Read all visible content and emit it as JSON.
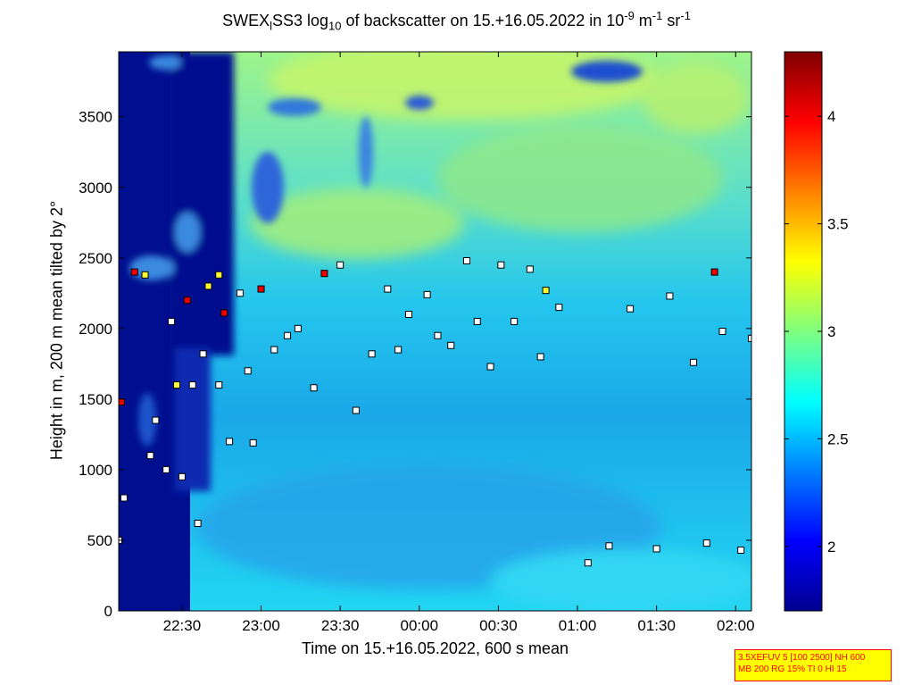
{
  "title": {
    "part1": "SWEX",
    "part1_sub": "l",
    "part2": "SS3 log",
    "part2_sub": "10",
    "part3": " of backscatter on 15.+16.05.2022 in 10",
    "part3_sup": "-9",
    "part4": " m",
    "part4_sup": "-1",
    "part5": " sr",
    "part5_sup": "-1"
  },
  "xlabel": "Time on 15.+16.05.2022, 600 s mean",
  "ylabel": "Height in m, 200 m mean tilted by 2°",
  "info": {
    "line1": "3.5XEFUV 5 [100 2500] NH 600",
    "line2": "MB 200 RG 15% TI 0 HI 15"
  },
  "chart_data": {
    "type": "heatmap",
    "x_axis": {
      "label": "Time on 15.+16.05.2022, 600 s mean",
      "range": [
        "22:06",
        "02:06"
      ],
      "ticks": [
        "22:30",
        "23:00",
        "23:30",
        "00:00",
        "00:30",
        "01:00",
        "01:30",
        "02:00"
      ]
    },
    "y_axis": {
      "label": "Height in m, 200 m mean tilted by 2°",
      "range": [
        0,
        3960
      ],
      "ticks": [
        0,
        500,
        1000,
        1500,
        2000,
        2500,
        3000,
        3500
      ]
    },
    "colorbar": {
      "colormap": "jet",
      "range": [
        1.7,
        4.3
      ],
      "ticks": [
        2,
        2.5,
        3,
        3.5,
        4
      ]
    },
    "layer_markers": [
      {
        "time": "22:06",
        "height": 500,
        "level": "low"
      },
      {
        "time": "22:08",
        "height": 800,
        "level": "low"
      },
      {
        "time": "22:07",
        "height": 1480,
        "level": "high"
      },
      {
        "time": "22:12",
        "height": 2400,
        "level": "high"
      },
      {
        "time": "22:16",
        "height": 2380,
        "level": "mid"
      },
      {
        "time": "22:18",
        "height": 1100,
        "level": "low"
      },
      {
        "time": "22:20",
        "height": 1350,
        "level": "low"
      },
      {
        "time": "22:24",
        "height": 1000,
        "level": "low"
      },
      {
        "time": "22:26",
        "height": 2050,
        "level": "low"
      },
      {
        "time": "22:28",
        "height": 1600,
        "level": "mid"
      },
      {
        "time": "22:30",
        "height": 950,
        "level": "low"
      },
      {
        "time": "22:32",
        "height": 2200,
        "level": "high"
      },
      {
        "time": "22:34",
        "height": 1600,
        "level": "low"
      },
      {
        "time": "22:36",
        "height": 620,
        "level": "low"
      },
      {
        "time": "22:38",
        "height": 1820,
        "level": "low"
      },
      {
        "time": "22:40",
        "height": 2300,
        "level": "mid"
      },
      {
        "time": "22:44",
        "height": 2380,
        "level": "mid"
      },
      {
        "time": "22:44",
        "height": 1600,
        "level": "low"
      },
      {
        "time": "22:46",
        "height": 2110,
        "level": "high"
      },
      {
        "time": "22:48",
        "height": 1200,
        "level": "low"
      },
      {
        "time": "22:52",
        "height": 2250,
        "level": "low"
      },
      {
        "time": "22:55",
        "height": 1700,
        "level": "low"
      },
      {
        "time": "22:57",
        "height": 1190,
        "level": "low"
      },
      {
        "time": "23:00",
        "height": 2280,
        "level": "high"
      },
      {
        "time": "23:05",
        "height": 1850,
        "level": "low"
      },
      {
        "time": "23:10",
        "height": 1950,
        "level": "low"
      },
      {
        "time": "23:14",
        "height": 2000,
        "level": "low"
      },
      {
        "time": "23:20",
        "height": 1580,
        "level": "low"
      },
      {
        "time": "23:24",
        "height": 2390,
        "level": "high"
      },
      {
        "time": "23:30",
        "height": 2450,
        "level": "low"
      },
      {
        "time": "23:36",
        "height": 1420,
        "level": "low"
      },
      {
        "time": "23:42",
        "height": 1820,
        "level": "low"
      },
      {
        "time": "23:48",
        "height": 2280,
        "level": "low"
      },
      {
        "time": "23:52",
        "height": 1850,
        "level": "low"
      },
      {
        "time": "23:56",
        "height": 2100,
        "level": "low"
      },
      {
        "time": "00:03",
        "height": 2240,
        "level": "low"
      },
      {
        "time": "00:07",
        "height": 1950,
        "level": "low"
      },
      {
        "time": "00:12",
        "height": 1880,
        "level": "low"
      },
      {
        "time": "00:18",
        "height": 2480,
        "level": "low"
      },
      {
        "time": "00:22",
        "height": 2050,
        "level": "low"
      },
      {
        "time": "00:27",
        "height": 1730,
        "level": "low"
      },
      {
        "time": "00:31",
        "height": 2450,
        "level": "low"
      },
      {
        "time": "00:36",
        "height": 2050,
        "level": "low"
      },
      {
        "time": "00:42",
        "height": 2420,
        "level": "low"
      },
      {
        "time": "00:46",
        "height": 1800,
        "level": "low"
      },
      {
        "time": "00:48",
        "height": 2270,
        "level": "mid"
      },
      {
        "time": "00:53",
        "height": 2150,
        "level": "low"
      },
      {
        "time": "01:04",
        "height": 340,
        "level": "low"
      },
      {
        "time": "01:12",
        "height": 460,
        "level": "low"
      },
      {
        "time": "01:20",
        "height": 2140,
        "level": "low"
      },
      {
        "time": "01:30",
        "height": 440,
        "level": "low"
      },
      {
        "time": "01:35",
        "height": 2230,
        "level": "low"
      },
      {
        "time": "01:44",
        "height": 1760,
        "level": "low"
      },
      {
        "time": "01:49",
        "height": 480,
        "level": "low"
      },
      {
        "time": "01:52",
        "height": 2400,
        "level": "high"
      },
      {
        "time": "01:55",
        "height": 1980,
        "level": "low"
      },
      {
        "time": "02:02",
        "height": 430,
        "level": "low"
      },
      {
        "time": "02:06",
        "height": 1930,
        "level": "low"
      }
    ]
  }
}
